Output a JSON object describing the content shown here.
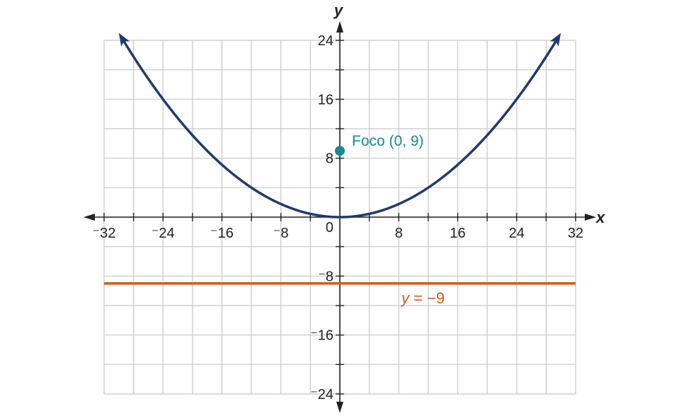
{
  "chart_data": {
    "type": "line",
    "xlabel": "x",
    "ylabel": "y",
    "xlim": [
      -32,
      32
    ],
    "ylim": [
      -24,
      24
    ],
    "grid": true,
    "grid_step": 4,
    "x_ticks": [
      -32,
      -24,
      -16,
      -8,
      8,
      16,
      24,
      32
    ],
    "x_tick_labels": [
      "⁻32",
      "⁻24",
      "⁻16",
      "⁻8",
      "8",
      "16",
      "24",
      "32"
    ],
    "y_ticks": [
      24,
      16,
      8,
      -8,
      -16,
      -24
    ],
    "y_tick_labels": [
      "24",
      "16",
      "8",
      "⁻8",
      "⁻16",
      "⁻24"
    ],
    "origin_label": "0",
    "series": [
      {
        "kind": "parabola",
        "equation": "y = x^2/36",
        "x_range": [
          -29.5,
          29.5
        ],
        "color": "#1f3a6e",
        "arrows": "both"
      },
      {
        "kind": "horizontal-line",
        "y": -9,
        "x_range": [
          -32,
          32
        ],
        "color": "#d55a17"
      }
    ],
    "points": [
      {
        "x": 0,
        "y": 9,
        "color": "#1a8c8c"
      }
    ],
    "annotations": {
      "focus_label": "Foco (0, 9)",
      "directrix_label": "y = −9",
      "directrix_var": "y",
      "directrix_rest": " = −9"
    },
    "colors": {
      "grid": "#c8c8c8",
      "axis": "#222222",
      "parabola": "#1f3a6e",
      "directrix": "#d55a17",
      "focus": "#1a8c8c"
    }
  }
}
